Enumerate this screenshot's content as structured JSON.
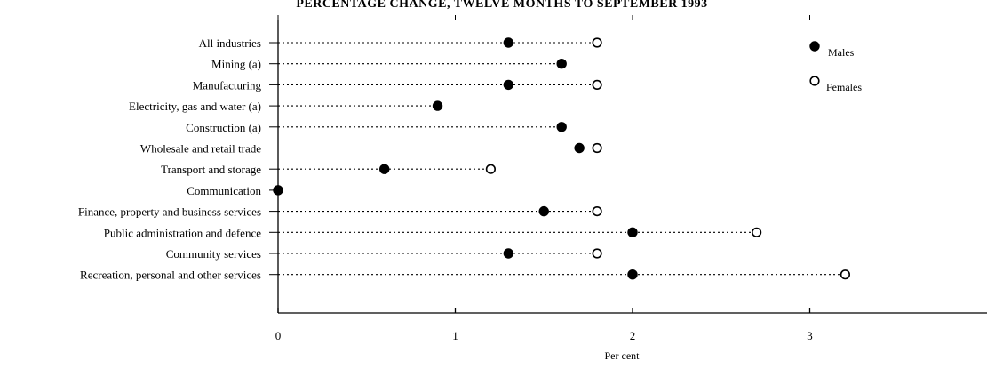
{
  "chart_data": {
    "type": "scatter",
    "title": "PERCENTAGE CHANGE, TWELVE MONTHS TO SEPTEMBER 1993",
    "xlabel": "Per cent",
    "ylabel": "",
    "xlim": [
      0,
      4
    ],
    "xticks": [
      "0",
      "1",
      "2",
      "3"
    ],
    "grid": false,
    "legend_position": "top-right",
    "categories": [
      "All industries",
      "Mining (a)",
      "Manufacturing",
      "Electricity, gas and water (a)",
      "Construction (a)",
      "Wholesale and retail trade",
      "Transport and storage",
      "Communication",
      "Finance, property and business services",
      "Public administration and defence",
      "Community services",
      "Recreation, personal and other services"
    ],
    "series": [
      {
        "name": "Males",
        "marker": "filled",
        "color": "#000000",
        "values": [
          1.3,
          1.6,
          1.3,
          0.9,
          1.6,
          1.7,
          0.6,
          0.0,
          1.5,
          2.0,
          1.3,
          2.0
        ]
      },
      {
        "name": "Females",
        "marker": "open",
        "color": "#000000",
        "values": [
          1.8,
          null,
          1.8,
          null,
          null,
          1.8,
          1.2,
          0.0,
          1.8,
          2.7,
          1.8,
          3.2
        ]
      }
    ]
  }
}
